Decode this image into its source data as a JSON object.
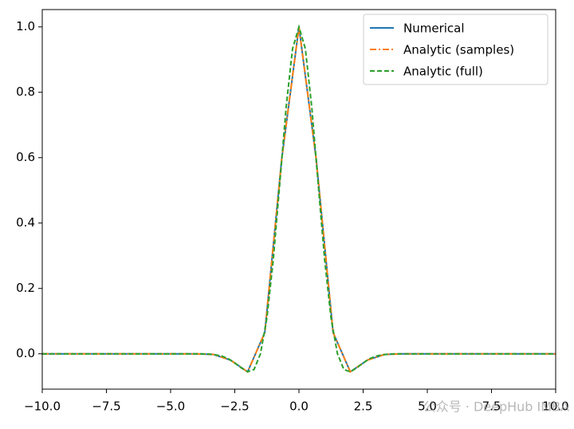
{
  "chart_data": {
    "type": "line",
    "xlim": [
      -10,
      10
    ],
    "ylim": [
      -0.108,
      1.053
    ],
    "xticks": [
      {
        "value": -10,
        "label": "−10.0"
      },
      {
        "value": -7.5,
        "label": "−7.5"
      },
      {
        "value": -5,
        "label": "−5.0"
      },
      {
        "value": -2.5,
        "label": "−2.5"
      },
      {
        "value": 0,
        "label": "0.0"
      },
      {
        "value": 2.5,
        "label": "2.5"
      },
      {
        "value": 5,
        "label": "5.0"
      },
      {
        "value": 7.5,
        "label": "7.5"
      },
      {
        "value": 10,
        "label": "10.0"
      }
    ],
    "yticks": [
      {
        "value": 0,
        "label": "0.0"
      },
      {
        "value": 0.2,
        "label": "0.2"
      },
      {
        "value": 0.4,
        "label": "0.4"
      },
      {
        "value": 0.6,
        "label": "0.6"
      },
      {
        "value": 0.8,
        "label": "0.8"
      },
      {
        "value": 1.0,
        "label": "1.0"
      }
    ],
    "legend": "upper right",
    "series": [
      {
        "name": "Numerical",
        "color": "#1f77b4",
        "dash": "solid",
        "x": [
          -10,
          -9.33,
          -8.67,
          -8,
          -7.33,
          -6.67,
          -6,
          -5.33,
          -4.67,
          -4,
          -3.33,
          -2.67,
          -2,
          -1.33,
          -0.67,
          0,
          0.67,
          1.33,
          2,
          2.67,
          3.33,
          4,
          4.67,
          5.33,
          6,
          6.67,
          7.33,
          8,
          8.67,
          9.33,
          10
        ],
        "values": [
          0,
          0,
          0,
          0,
          0,
          0,
          0,
          0,
          0,
          0,
          -0.002,
          -0.019,
          -0.055,
          0.065,
          0.597,
          1.0,
          0.597,
          0.065,
          -0.055,
          -0.019,
          -0.002,
          0,
          0,
          0,
          0,
          0,
          0,
          0,
          0,
          0,
          0
        ]
      },
      {
        "name": "Analytic (samples)",
        "color": "#ff7f0e",
        "dash": "dashdot",
        "x": [
          -10,
          -9.33,
          -8.67,
          -8,
          -7.33,
          -6.67,
          -6,
          -5.33,
          -4.67,
          -4,
          -3.33,
          -2.67,
          -2,
          -1.33,
          -0.67,
          0,
          0.67,
          1.33,
          2,
          2.67,
          3.33,
          4,
          4.67,
          5.33,
          6,
          6.67,
          7.33,
          8,
          8.67,
          9.33,
          10
        ],
        "values": [
          0,
          0,
          0,
          0,
          0,
          0,
          0,
          0,
          0,
          0,
          -0.002,
          -0.019,
          -0.055,
          0.065,
          0.597,
          1.0,
          0.597,
          0.065,
          -0.055,
          -0.019,
          -0.002,
          0,
          0,
          0,
          0,
          0,
          0,
          0,
          0,
          0,
          0
        ]
      },
      {
        "name": "Analytic (full)",
        "color": "#2ca02c",
        "dash": "dashed",
        "x": [
          -10,
          -8,
          -6,
          -4.5,
          -3.75,
          -3.5,
          -3.25,
          -3,
          -2.75,
          -2.5,
          -2.25,
          -2,
          -1.75,
          -1.5,
          -1.25,
          -1,
          -0.75,
          -0.5,
          -0.25,
          0,
          0.25,
          0.5,
          0.75,
          1,
          1.25,
          1.5,
          1.75,
          2,
          2.25,
          2.5,
          2.75,
          3,
          3.25,
          3.5,
          3.75,
          4.5,
          6,
          8,
          10
        ],
        "values": [
          0,
          0,
          0,
          0,
          0,
          -0.001,
          -0.003,
          -0.007,
          -0.015,
          -0.028,
          -0.043,
          -0.055,
          -0.048,
          0,
          0.109,
          0.288,
          0.518,
          0.754,
          0.933,
          1.0,
          0.933,
          0.754,
          0.518,
          0.288,
          0.109,
          0,
          -0.048,
          -0.055,
          -0.043,
          -0.028,
          -0.015,
          -0.007,
          -0.003,
          -0.001,
          0,
          0,
          0,
          0,
          0
        ]
      }
    ],
    "watermark": "公众号 · DeepHub IMBA"
  }
}
